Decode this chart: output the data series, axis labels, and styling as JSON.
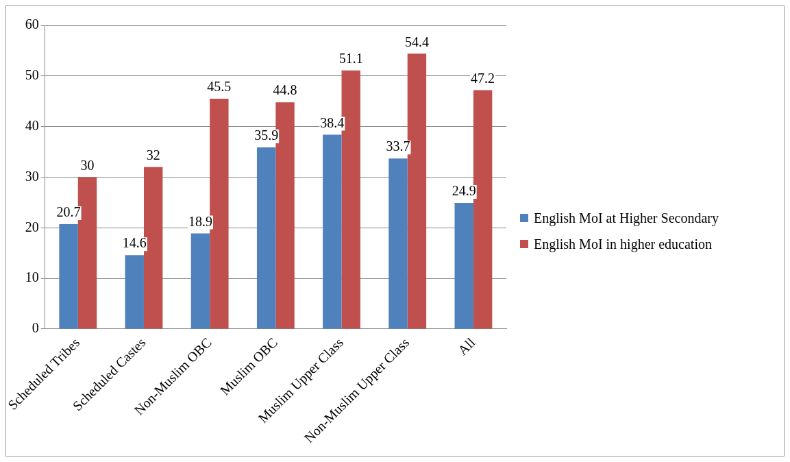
{
  "chart_data": {
    "type": "bar",
    "categories": [
      "Scheduled Tribes",
      "Scheduled Castes",
      "Non-Muslim OBC",
      "Muslim OBC",
      "Muslim Upper Class",
      "Non-Muslim Upper Class",
      "All"
    ],
    "series": [
      {
        "name": "English MoI at Higher Secondary",
        "color": "#4f81bd",
        "values": [
          20.7,
          14.6,
          18.9,
          35.9,
          38.4,
          33.7,
          24.9
        ]
      },
      {
        "name": "English MoI in higher education",
        "color": "#c0504d",
        "values": [
          30,
          32,
          45.5,
          44.8,
          51.1,
          54.4,
          47.2
        ]
      }
    ],
    "ylim": [
      0,
      60
    ],
    "yticks": [
      0,
      10,
      20,
      30,
      40,
      50,
      60
    ],
    "grid": "y",
    "legend": "right",
    "data_labels": true
  }
}
